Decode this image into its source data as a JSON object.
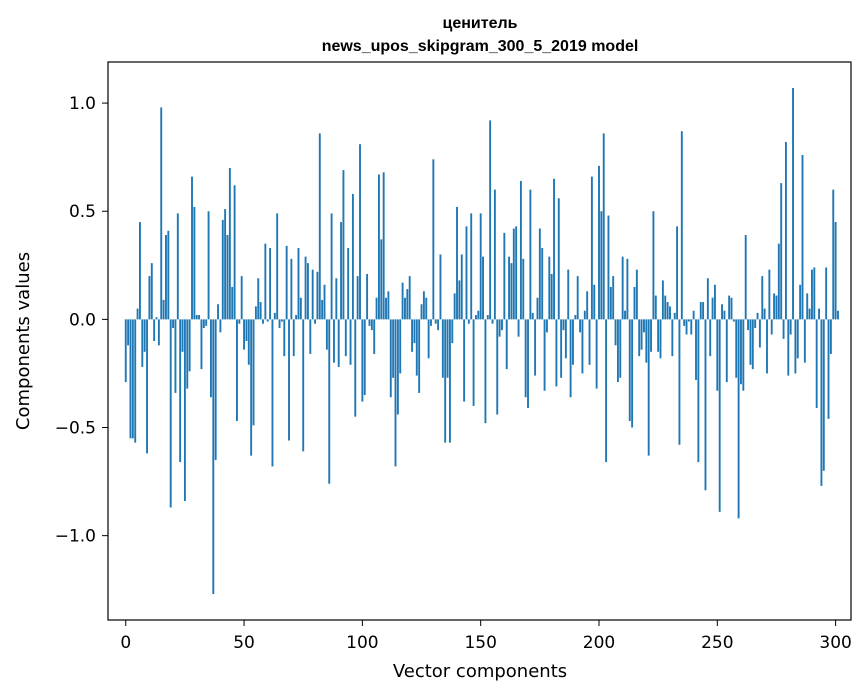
{
  "chart_data": {
    "type": "bar",
    "title_lines": [
      "ценитель",
      "news_upos_skipgram_300_5_2019 model"
    ],
    "xlabel": "Vector components",
    "ylabel": "Components values",
    "xlim": [
      -7.5,
      306.5
    ],
    "ylim": [
      -1.39,
      1.19
    ],
    "xticks": [
      0,
      50,
      100,
      150,
      200,
      250,
      300
    ],
    "xtick_labels": [
      "0",
      "50",
      "100",
      "150",
      "200",
      "250",
      "300"
    ],
    "yticks": [
      -1.0,
      -0.5,
      0.0,
      0.5,
      1.0
    ],
    "ytick_labels": [
      "−1.0",
      "−0.5",
      "0.0",
      "0.5",
      "1.0"
    ],
    "bar_color": "#1f77b4",
    "grid": false,
    "x_start": 0,
    "values": [
      -0.29,
      -0.12,
      -0.55,
      -0.55,
      -0.57,
      0.05,
      0.45,
      -0.22,
      -0.15,
      -0.62,
      0.2,
      0.26,
      -0.1,
      0.01,
      -0.12,
      0.98,
      0.09,
      0.39,
      0.41,
      -0.87,
      -0.04,
      -0.34,
      0.49,
      -0.66,
      -0.15,
      -0.84,
      -0.32,
      -0.24,
      0.66,
      0.52,
      0.02,
      0.02,
      -0.23,
      -0.04,
      -0.03,
      0.5,
      -0.36,
      -1.27,
      -0.65,
      0.07,
      -0.06,
      0.46,
      0.51,
      0.39,
      0.7,
      0.15,
      0.62,
      -0.47,
      -0.02,
      0.2,
      -0.14,
      -0.1,
      -0.21,
      -0.63,
      -0.49,
      0.06,
      0.19,
      0.08,
      -0.02,
      0.35,
      -0.01,
      0.33,
      -0.68,
      0.03,
      0.49,
      -0.04,
      -0.01,
      -0.17,
      0.34,
      -0.56,
      0.28,
      -0.17,
      0.02,
      0.33,
      0.1,
      -0.61,
      0.29,
      0.26,
      -0.16,
      0.23,
      -0.02,
      0.22,
      0.86,
      0.09,
      0.16,
      -0.14,
      -0.76,
      0.49,
      -0.2,
      0.19,
      -0.22,
      0.45,
      0.69,
      -0.17,
      0.33,
      -0.21,
      0.58,
      -0.45,
      0.2,
      0.81,
      -0.38,
      -0.35,
      0.21,
      -0.03,
      -0.05,
      -0.16,
      0.1,
      0.67,
      0.37,
      0.68,
      0.1,
      0.13,
      -0.36,
      -0.27,
      -0.68,
      -0.44,
      -0.25,
      0.17,
      0.1,
      0.14,
      0.2,
      -0.15,
      -0.11,
      -0.26,
      -0.34,
      0.07,
      0.13,
      0.1,
      -0.18,
      -0.03,
      0.74,
      -0.02,
      -0.05,
      0.3,
      -0.27,
      -0.57,
      -0.27,
      -0.57,
      -0.11,
      0.12,
      0.52,
      0.18,
      0.3,
      -0.38,
      0.43,
      -0.02,
      0.49,
      -0.4,
      0.02,
      0.04,
      0.49,
      0.29,
      -0.48,
      0.02,
      0.92,
      -0.02,
      0.6,
      -0.44,
      -0.08,
      -0.05,
      0.4,
      -0.23,
      0.29,
      0.26,
      0.42,
      0.43,
      -0.08,
      0.64,
      0.28,
      -0.36,
      -0.41,
      0.6,
      0.03,
      -0.26,
      0.1,
      0.42,
      0.33,
      -0.33,
      -0.06,
      0.29,
      0.21,
      0.65,
      -0.31,
      0.56,
      -0.27,
      -0.05,
      -0.18,
      0.23,
      -0.36,
      -0.21,
      0.02,
      0.2,
      -0.06,
      -0.25,
      0.04,
      0.13,
      -0.21,
      0.66,
      0.16,
      -0.32,
      0.71,
      0.5,
      0.86,
      -0.66,
      0.48,
      0.15,
      0.2,
      -0.12,
      -0.29,
      -0.27,
      0.29,
      0.04,
      0.28,
      -0.47,
      -0.5,
      0.15,
      0.23,
      -0.17,
      -0.14,
      -0.06,
      -0.2,
      -0.63,
      -0.15,
      0.5,
      0.11,
      -0.15,
      -0.18,
      0.18,
      0.11,
      0.08,
      0.06,
      -0.17,
      0.03,
      0.43,
      -0.58,
      0.87,
      -0.03,
      -0.07,
      -0.01,
      -0.07,
      0.04,
      -0.28,
      -0.66,
      0.08,
      0.08,
      -0.79,
      0.19,
      -0.17,
      0.1,
      0.16,
      -0.33,
      -0.89,
      0.07,
      0.04,
      -0.29,
      0.11,
      0.1,
      -0.01,
      -0.27,
      -0.92,
      -0.3,
      -0.33,
      0.39,
      -0.05,
      -0.21,
      -0.23,
      -0.04,
      0.03,
      -0.13,
      0.2,
      0.05,
      -0.25,
      0.23,
      -0.07,
      0.12,
      0.11,
      0.35,
      0.63,
      -0.09,
      0.82,
      -0.26,
      -0.07,
      1.07,
      -0.25,
      -0.18,
      0.16,
      0.76,
      -0.2,
      0.12,
      0.05,
      0.23,
      0.24,
      -0.41,
      0.05,
      -0.77,
      -0.7,
      0.24,
      -0.46,
      -0.16,
      0.6,
      0.45,
      0.04
    ]
  }
}
